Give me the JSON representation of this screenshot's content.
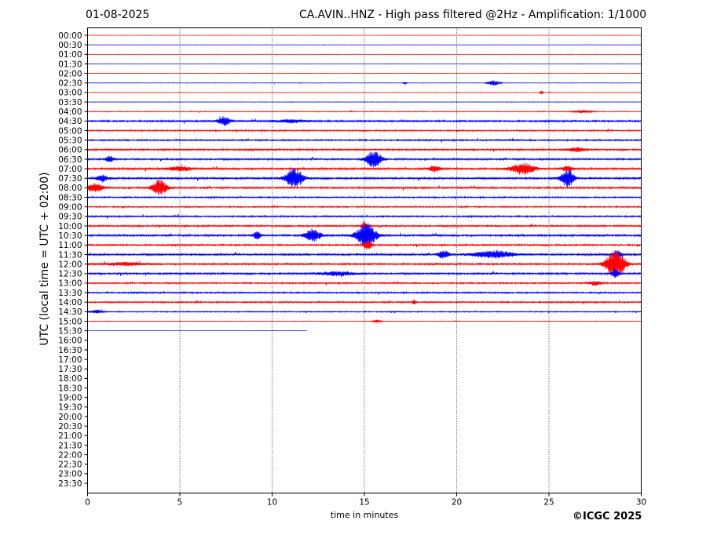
{
  "header": {
    "date": "01-08-2025",
    "title": "CA.AVIN..HNZ - High pass filtered @2Hz - Amplification: 1/1000"
  },
  "credit": "©ICGC 2025",
  "colors": {
    "red": "#ff0000",
    "blue": "#0000ff",
    "grid": "#000000"
  },
  "chart_data": {
    "type": "line",
    "title": "CA.AVIN..HNZ - High pass filtered @2Hz - Amplification: 1/1000",
    "xlabel": "time in minutes",
    "ylabel": "UTC (local time = UTC + 02:00)",
    "xlim": [
      0,
      30
    ],
    "xticks": [
      "0",
      "5",
      "10",
      "15",
      "20",
      "25",
      "30"
    ],
    "yticks": [
      "00:00",
      "00:30",
      "01:00",
      "01:30",
      "02:00",
      "02:30",
      "03:00",
      "03:30",
      "04:00",
      "04:30",
      "05:00",
      "05:30",
      "06:00",
      "06:30",
      "07:00",
      "07:30",
      "08:00",
      "08:30",
      "09:00",
      "09:30",
      "10:00",
      "10:30",
      "11:00",
      "11:30",
      "12:00",
      "12:30",
      "13:00",
      "13:30",
      "14:00",
      "14:30",
      "15:00",
      "15:30",
      "16:00",
      "16:30",
      "17:00",
      "17:30",
      "18:00",
      "18:30",
      "19:00",
      "19:30",
      "20:00",
      "20:30",
      "21:00",
      "21:30",
      "22:00",
      "22:30",
      "23:00",
      "23:30"
    ],
    "grid": "vertical dotted lines at 5-minute intervals",
    "trace_colors_alternate": [
      "red",
      "blue"
    ],
    "traces": [
      {
        "label": "00:00",
        "noise": 0.2,
        "end": 30,
        "bursts": []
      },
      {
        "label": "00:30",
        "noise": 0.2,
        "end": 30,
        "bursts": []
      },
      {
        "label": "01:00",
        "noise": 0.25,
        "end": 30,
        "bursts": []
      },
      {
        "label": "01:30",
        "noise": 0.2,
        "end": 30,
        "bursts": []
      },
      {
        "label": "02:00",
        "noise": 0.2,
        "end": 30,
        "bursts": []
      },
      {
        "label": "02:30",
        "noise": 0.3,
        "end": 30,
        "bursts": [
          {
            "t": 22.0,
            "amp": 3.5,
            "w": 0.3
          },
          {
            "t": 17.2,
            "amp": 1.2,
            "w": 0.1
          }
        ]
      },
      {
        "label": "03:00",
        "noise": 0.25,
        "end": 30,
        "bursts": [
          {
            "t": 24.6,
            "amp": 2.5,
            "w": 0.08
          }
        ]
      },
      {
        "label": "03:30",
        "noise": 0.3,
        "end": 30,
        "bursts": []
      },
      {
        "label": "04:00",
        "noise": 0.6,
        "end": 30,
        "bursts": [
          {
            "t": 26.8,
            "amp": 1.5,
            "w": 0.5
          }
        ]
      },
      {
        "label": "04:30",
        "noise": 1.2,
        "end": 30,
        "bursts": [
          {
            "t": 7.4,
            "amp": 5.5,
            "w": 0.35
          },
          {
            "t": 11.0,
            "amp": 2.0,
            "w": 0.8
          }
        ]
      },
      {
        "label": "05:00",
        "noise": 1.0,
        "end": 30,
        "bursts": []
      },
      {
        "label": "05:30",
        "noise": 1.1,
        "end": 30,
        "bursts": []
      },
      {
        "label": "06:00",
        "noise": 1.2,
        "end": 30,
        "bursts": [
          {
            "t": 26.5,
            "amp": 3.0,
            "w": 0.4
          }
        ]
      },
      {
        "label": "06:30",
        "noise": 1.3,
        "end": 30,
        "bursts": [
          {
            "t": 15.5,
            "amp": 11.0,
            "w": 0.4
          },
          {
            "t": 1.2,
            "amp": 4.0,
            "w": 0.2
          }
        ]
      },
      {
        "label": "07:00",
        "noise": 1.4,
        "end": 30,
        "bursts": [
          {
            "t": 23.6,
            "amp": 7.0,
            "w": 0.6
          },
          {
            "t": 18.8,
            "amp": 4.0,
            "w": 0.3
          },
          {
            "t": 26.0,
            "amp": 3.5,
            "w": 0.3
          },
          {
            "t": 5.0,
            "amp": 3.0,
            "w": 0.6
          }
        ]
      },
      {
        "label": "07:30",
        "noise": 1.4,
        "end": 30,
        "bursts": [
          {
            "t": 11.2,
            "amp": 13.0,
            "w": 0.45
          },
          {
            "t": 26.0,
            "amp": 11.0,
            "w": 0.35
          },
          {
            "t": 0.8,
            "amp": 4.0,
            "w": 0.3
          }
        ]
      },
      {
        "label": "08:00",
        "noise": 1.3,
        "end": 30,
        "bursts": [
          {
            "t": 3.9,
            "amp": 10.0,
            "w": 0.4
          },
          {
            "t": 0.4,
            "amp": 6.0,
            "w": 0.4
          }
        ]
      },
      {
        "label": "08:30",
        "noise": 1.0,
        "end": 30,
        "bursts": []
      },
      {
        "label": "09:00",
        "noise": 1.0,
        "end": 30,
        "bursts": []
      },
      {
        "label": "09:30",
        "noise": 1.1,
        "end": 30,
        "bursts": []
      },
      {
        "label": "10:00",
        "noise": 1.2,
        "end": 30,
        "bursts": [
          {
            "t": 15.0,
            "amp": 6.0,
            "w": 0.15
          }
        ]
      },
      {
        "label": "10:30",
        "noise": 1.4,
        "end": 30,
        "bursts": [
          {
            "t": 15.1,
            "amp": 16.0,
            "w": 0.5
          },
          {
            "t": 12.2,
            "amp": 9.0,
            "w": 0.4
          },
          {
            "t": 9.2,
            "amp": 5.0,
            "w": 0.2
          }
        ]
      },
      {
        "label": "11:00",
        "noise": 1.2,
        "end": 30,
        "bursts": [
          {
            "t": 15.2,
            "amp": 6.0,
            "w": 0.2
          }
        ]
      },
      {
        "label": "11:30",
        "noise": 1.4,
        "end": 30,
        "bursts": [
          {
            "t": 22.0,
            "amp": 5.0,
            "w": 1.0
          },
          {
            "t": 19.3,
            "amp": 5.0,
            "w": 0.3
          },
          {
            "t": 28.7,
            "amp": 6.0,
            "w": 0.2
          }
        ]
      },
      {
        "label": "12:00",
        "noise": 1.3,
        "end": 30,
        "bursts": [
          {
            "t": 28.6,
            "amp": 18.0,
            "w": 0.5
          },
          {
            "t": 2.0,
            "amp": 2.0,
            "w": 1.0
          }
        ]
      },
      {
        "label": "12:30",
        "noise": 1.3,
        "end": 30,
        "bursts": [
          {
            "t": 13.5,
            "amp": 2.5,
            "w": 1.0
          },
          {
            "t": 28.6,
            "amp": 6.0,
            "w": 0.2
          }
        ]
      },
      {
        "label": "13:00",
        "noise": 1.1,
        "end": 30,
        "bursts": [
          {
            "t": 27.5,
            "amp": 3.0,
            "w": 0.3
          }
        ]
      },
      {
        "label": "13:30",
        "noise": 1.1,
        "end": 30,
        "bursts": []
      },
      {
        "label": "14:00",
        "noise": 1.1,
        "end": 30,
        "bursts": [
          {
            "t": 17.7,
            "amp": 3.0,
            "w": 0.1
          }
        ]
      },
      {
        "label": "14:30",
        "noise": 0.8,
        "end": 30,
        "bursts": [
          {
            "t": 0.5,
            "amp": 2.0,
            "w": 0.3
          }
        ]
      },
      {
        "label": "15:00",
        "noise": 0.4,
        "end": 30,
        "bursts": [
          {
            "t": 15.7,
            "amp": 2.0,
            "w": 0.2
          }
        ]
      },
      {
        "label": "15:30",
        "noise": 0.08,
        "end": 11.9,
        "bursts": []
      }
    ]
  }
}
